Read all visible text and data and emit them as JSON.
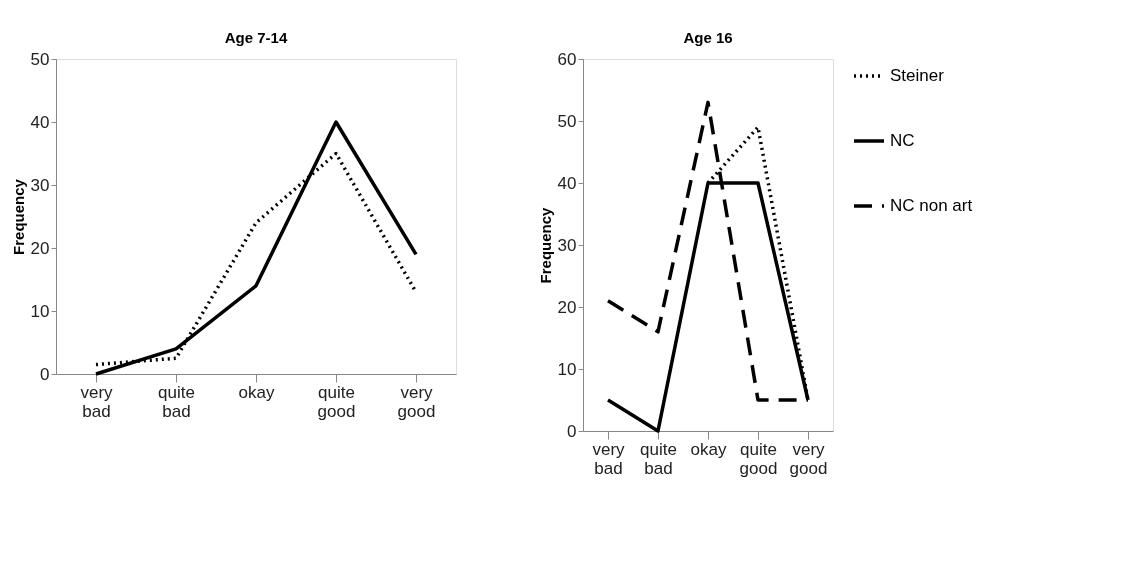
{
  "chart_data": [
    {
      "type": "line",
      "title": "Age 7-14",
      "ylabel": "Frequency",
      "categories": [
        "very bad",
        "quite bad",
        "okay",
        "quite good",
        "very good"
      ],
      "ylim": [
        0,
        50
      ],
      "yticks": [
        0,
        10,
        20,
        30,
        40,
        50
      ],
      "grid": false,
      "legend": false,
      "marker": "none",
      "series": [
        {
          "color": "#000000",
          "line_style": "dotted",
          "values": [
            1.5,
            2.5,
            24,
            35,
            13
          ]
        },
        {
          "color": "#000000",
          "line_style": "solid",
          "values": [
            0,
            4,
            14,
            40,
            19
          ]
        }
      ]
    },
    {
      "type": "line",
      "title": "Age 16",
      "ylabel": "Frequency",
      "categories": [
        "very bad",
        "quite bad",
        "okay",
        "quite good",
        "very good"
      ],
      "ylim": [
        0,
        60
      ],
      "yticks": [
        0,
        10,
        20,
        30,
        40,
        50,
        60
      ],
      "grid": false,
      "legend": "right",
      "marker": "none",
      "series": [
        {
          "name": "Steiner",
          "color": "#000000",
          "line_style": "dotted",
          "values": [
            null,
            null,
            40,
            49,
            5
          ]
        },
        {
          "name": "NC",
          "color": "#000000",
          "line_style": "solid",
          "values": [
            5,
            0,
            40,
            40,
            5
          ]
        },
        {
          "name": "NC non art",
          "color": "#000000",
          "line_style": "dashed",
          "values": [
            21,
            16,
            53,
            5,
            5
          ]
        }
      ]
    }
  ]
}
